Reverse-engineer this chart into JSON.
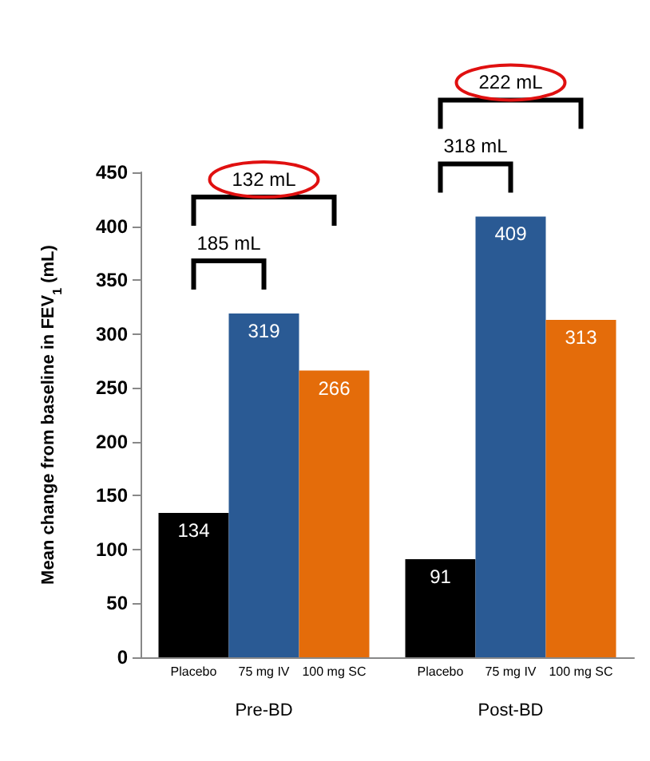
{
  "chart_data": {
    "type": "bar",
    "categories": [
      "Pre-BD",
      "Post-BD"
    ],
    "series": [
      {
        "name": "Placebo",
        "color": "#000000",
        "values": [
          134,
          91
        ]
      },
      {
        "name": "75 mg IV",
        "color": "#2a5a94",
        "values": [
          319,
          409
        ]
      },
      {
        "name": "100 mg SC",
        "color": "#e46c0a",
        "values": [
          266,
          313
        ]
      }
    ],
    "ylabel": "Mean change from baseline in FEV$_{1}$ (mL)",
    "ylim": [
      0,
      450
    ],
    "yticks": [
      0,
      50,
      100,
      150,
      200,
      250,
      300,
      350,
      400,
      450
    ],
    "data_labels": true,
    "grid": false,
    "annotations": [
      "185 mL",
      "132 mL",
      "318 mL",
      "222 mL"
    ]
  }
}
